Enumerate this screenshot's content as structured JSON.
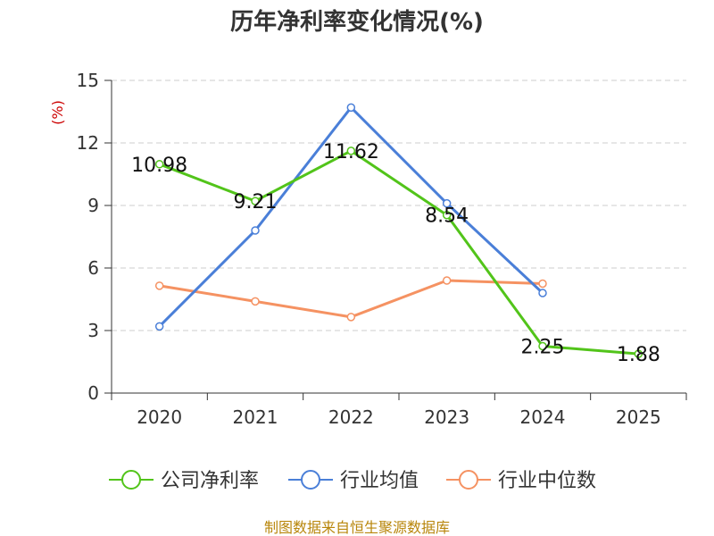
{
  "chart_data": {
    "type": "line",
    "title": "历年净利率变化情况(%)",
    "ylabel": "(%)",
    "xlabel": "",
    "categories": [
      "2020",
      "2021",
      "2022",
      "2023",
      "2024",
      "2025"
    ],
    "ylim": [
      0,
      15
    ],
    "yticks": [
      0,
      3,
      6,
      9,
      12,
      15
    ],
    "grid": true,
    "legend_position": "bottom",
    "series": [
      {
        "name": "公司净利率",
        "color": "#52c41a",
        "values": [
          10.98,
          9.21,
          11.62,
          8.54,
          2.25,
          1.88
        ],
        "labels": [
          "10.98",
          "9.21",
          "11.62",
          "8.54",
          "2.25",
          "1.88"
        ]
      },
      {
        "name": "行业均值",
        "color": "#4a7fd8",
        "values": [
          3.2,
          7.8,
          13.7,
          9.1,
          4.8,
          null
        ]
      },
      {
        "name": "行业中位数",
        "color": "#f59262",
        "values": [
          5.15,
          4.4,
          3.65,
          5.4,
          5.25,
          null
        ]
      }
    ]
  },
  "source": "制图数据来自恒生聚源数据库",
  "colors": {
    "unit": "#cc0000",
    "source": "#b8860b",
    "grid": "#cccccc",
    "axis": "#333333"
  }
}
